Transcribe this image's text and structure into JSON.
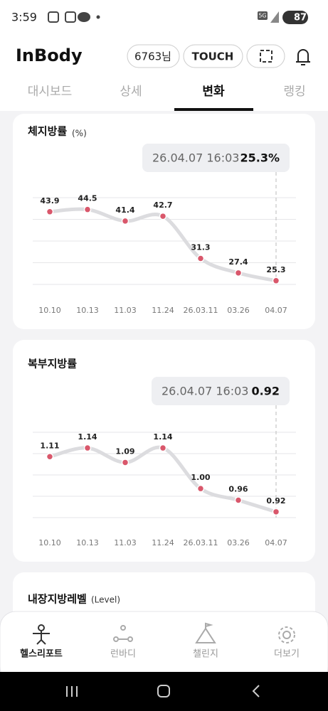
{
  "status_bar": {
    "time": "3:59",
    "network": "5G",
    "battery": "87"
  },
  "header": {
    "logo": "InBody",
    "user": "6763님",
    "touch": "TOUCH"
  },
  "tabs": [
    "대시보드",
    "상세",
    "변화",
    "랭킹"
  ],
  "chart_data": [
    {
      "type": "line",
      "title": "체지방률",
      "unit": "(%)",
      "categories": [
        "10.10",
        "10.13",
        "11.03",
        "11.24",
        "26.03.11",
        "03.26",
        "04.07"
      ],
      "values": [
        43.9,
        44.5,
        41.4,
        42.7,
        31.3,
        27.4,
        25.3
      ],
      "color": "#dcdcdf",
      "point_color": "#d9576b",
      "ylim": [
        24.3,
        47.7
      ],
      "tooltip": {
        "label": "26.04.07 16:03",
        "value_label": "25.3%"
      }
    },
    {
      "type": "line",
      "title": "복부지방률",
      "categories": [
        "10.10",
        "10.13",
        "11.03",
        "11.24",
        "26.03.11",
        "03.26",
        "04.07"
      ],
      "values": [
        1.11,
        1.14,
        1.09,
        1.14,
        1.0,
        0.96,
        0.92
      ],
      "value_labels": [
        "1.11",
        "1.14",
        "1.09",
        "1.14",
        "1.00",
        "0.96",
        "0.92"
      ],
      "color": "#dcdcdf",
      "point_color": "#d9576b",
      "ylim": [
        0.9,
        1.194
      ],
      "tooltip": {
        "label": "26.04.07 16:03",
        "value_label": "0.92"
      }
    }
  ],
  "next_card": {
    "title": "내장지방레벨",
    "unit": "(Level)"
  },
  "bottom_nav": [
    "헬스리포트",
    "런바디",
    "챌린지",
    "더보기"
  ]
}
